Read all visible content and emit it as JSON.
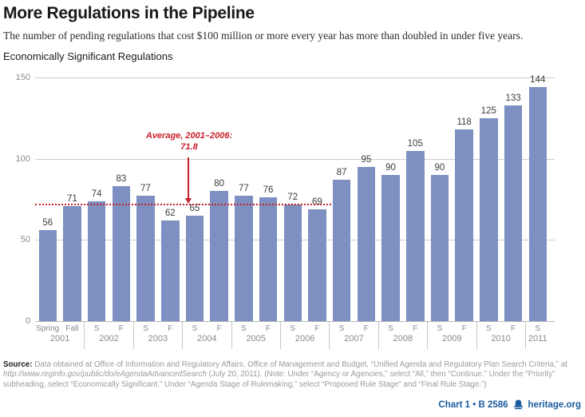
{
  "header": {
    "title": "More Regulations in the Pipeline",
    "subtitle": "The number of pending regulations that cost $100 million or more every year has more than doubled in under five years."
  },
  "chart_data": {
    "type": "bar",
    "title": "Economically Significant Regulations",
    "xlabel": "",
    "ylabel": "",
    "ylim": [
      0,
      150
    ],
    "yticks": [
      0,
      50,
      100,
      150
    ],
    "grid": true,
    "bar_color": "#7d90c1",
    "categories": [
      "Spring 2001",
      "Fall 2001",
      "S 2002",
      "F 2002",
      "S 2003",
      "F 2003",
      "S 2004",
      "F 2004",
      "S 2005",
      "F 2005",
      "S 2006",
      "F 2006",
      "S 2007",
      "F 2007",
      "S 2008",
      "F 2008",
      "S 2009",
      "F 2009",
      "S 2010",
      "F 2010",
      "S 2011"
    ],
    "values": [
      56,
      71,
      74,
      83,
      77,
      62,
      65,
      80,
      77,
      76,
      72,
      69,
      87,
      95,
      90,
      105,
      90,
      118,
      125,
      133,
      144
    ],
    "groups": [
      {
        "year": "2001",
        "seasons": [
          "Spring",
          "Fall"
        ]
      },
      {
        "year": "2002",
        "seasons": [
          "S",
          "F"
        ]
      },
      {
        "year": "2003",
        "seasons": [
          "S",
          "F"
        ]
      },
      {
        "year": "2004",
        "seasons": [
          "S",
          "F"
        ]
      },
      {
        "year": "2005",
        "seasons": [
          "S",
          "F"
        ]
      },
      {
        "year": "2006",
        "seasons": [
          "S",
          "F"
        ]
      },
      {
        "year": "2007",
        "seasons": [
          "S",
          "F"
        ]
      },
      {
        "year": "2008",
        "seasons": [
          "S",
          "F"
        ]
      },
      {
        "year": "2009",
        "seasons": [
          "S",
          "F"
        ]
      },
      {
        "year": "2010",
        "seasons": [
          "S",
          "F"
        ]
      },
      {
        "year": "2011",
        "seasons": [
          "S"
        ]
      }
    ],
    "average_line": {
      "value": 71.8,
      "label": "Average, 2001–2006:",
      "label_value": "71.8",
      "color": "#c8202a",
      "span_through_index": 11
    }
  },
  "footer": {
    "source_label": "Source:",
    "source_pre": " Data obtained at Office of Information and Regulatory Affairs, Office of Management and Budget, “Unified Agenda and Regulatory Plan Search Criteria,” at ",
    "source_url": "http://www.reginfo.gov/public/do/eAgendaAdvancedSearch",
    "source_post": " (July 20, 2011). (Note: Under “Agency or Agencies,” select “All,” then “Continue.” Under the “Priority” subheading, select “Economically Significant.” Under “Agenda Stage of Rulemaking,” select “Proposed Rule Stage” and “Final Rule Stage.”)",
    "chart_ref": "Chart 1 • B 2586",
    "site": "heritage.org",
    "accent_blue": "#1a5b9e"
  }
}
